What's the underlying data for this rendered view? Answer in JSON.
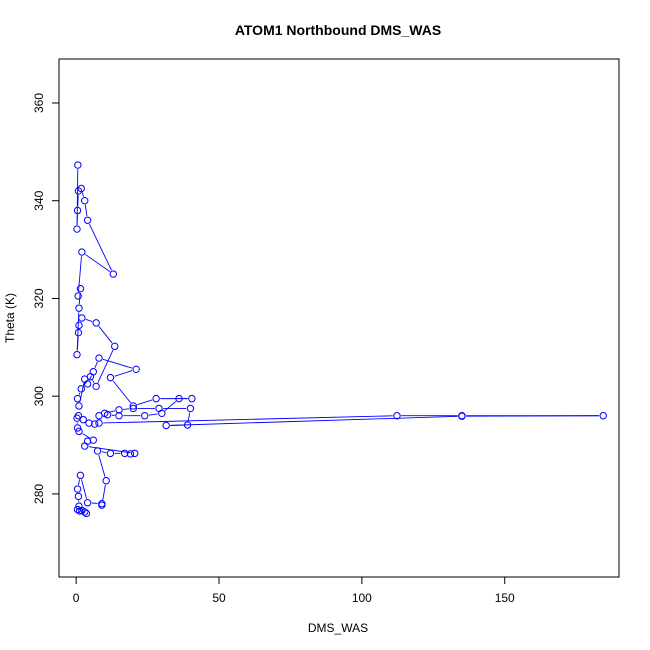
{
  "chart_data": {
    "type": "line",
    "title": "ATOM1 Northbound DMS_WAS",
    "xlabel": "DMS_WAS",
    "ylabel": "Theta (K)",
    "xlim": [
      -6,
      190
    ],
    "ylim": [
      263,
      369
    ],
    "xticks": [
      0,
      50,
      100,
      150
    ],
    "yticks": [
      280,
      300,
      320,
      340,
      360
    ],
    "grid": false,
    "legend": "none",
    "marker": "open-circle",
    "color": "#0000ff",
    "series": [
      {
        "points": [
          [
            0.5,
            276.8
          ],
          [
            1.2,
            276.5
          ],
          [
            2.0,
            276.6
          ],
          [
            3.0,
            276.3
          ],
          [
            3.6,
            276.0
          ],
          [
            1.0,
            277.5
          ],
          [
            0.8,
            279.5
          ],
          [
            0.5,
            281.0
          ],
          [
            1.5,
            283.8
          ],
          [
            4.0,
            278.2
          ],
          [
            9.0,
            278.0
          ],
          [
            9.0,
            277.7
          ],
          [
            10.5,
            282.7
          ],
          [
            7.5,
            288.8
          ],
          [
            12.0,
            288.3
          ],
          [
            17.0,
            288.3
          ],
          [
            19.0,
            288.2
          ],
          [
            20.5,
            288.3
          ],
          [
            3.0,
            289.8
          ],
          [
            4.0,
            290.8
          ],
          [
            6.0,
            291.0
          ],
          [
            1.0,
            292.8
          ],
          [
            0.5,
            293.5
          ],
          [
            0.3,
            295.5
          ],
          [
            0.8,
            296.0
          ],
          [
            2.5,
            295.2
          ],
          [
            4.5,
            294.5
          ],
          [
            6.5,
            294.3
          ],
          [
            8.0,
            294.5
          ],
          [
            112.3,
            296.0
          ],
          [
            135.0,
            296.0
          ],
          [
            184.5,
            296.0
          ],
          [
            135.0,
            295.9
          ],
          [
            31.5,
            294.0
          ],
          [
            39.0,
            294.1
          ],
          [
            40.0,
            297.5
          ],
          [
            29.0,
            297.5
          ],
          [
            20.0,
            297.5
          ],
          [
            15.0,
            297.2
          ],
          [
            10.0,
            296.5
          ],
          [
            8.0,
            296.0
          ],
          [
            11.0,
            296.2
          ],
          [
            15.0,
            296.0
          ],
          [
            24.0,
            296.0
          ],
          [
            30.0,
            296.5
          ],
          [
            36.0,
            299.5
          ],
          [
            40.5,
            299.5
          ],
          [
            28.0,
            299.5
          ],
          [
            20.0,
            298.0
          ],
          [
            12.0,
            303.8
          ],
          [
            21.0,
            305.5
          ],
          [
            8.0,
            307.8
          ],
          [
            6.0,
            305.0
          ],
          [
            4.0,
            302.5
          ],
          [
            3.0,
            303.5
          ],
          [
            1.0,
            298.0
          ],
          [
            0.5,
            299.5
          ],
          [
            1.8,
            301.5
          ],
          [
            5.0,
            304.0
          ],
          [
            7.0,
            302.0
          ],
          [
            13.5,
            310.2
          ],
          [
            7.0,
            315.0
          ],
          [
            2.0,
            316.0
          ],
          [
            1.0,
            314.5
          ],
          [
            0.8,
            313.0
          ],
          [
            0.3,
            308.5
          ],
          [
            1.0,
            318.0
          ],
          [
            1.5,
            322.0
          ],
          [
            0.7,
            320.5
          ],
          [
            2.0,
            329.5
          ],
          [
            13.0,
            325.0
          ],
          [
            4.0,
            336.0
          ],
          [
            3.0,
            340.0
          ],
          [
            1.8,
            342.5
          ],
          [
            0.8,
            342.0
          ],
          [
            0.5,
            338.0
          ],
          [
            0.3,
            334.2
          ],
          [
            0.6,
            347.3
          ]
        ]
      }
    ]
  }
}
